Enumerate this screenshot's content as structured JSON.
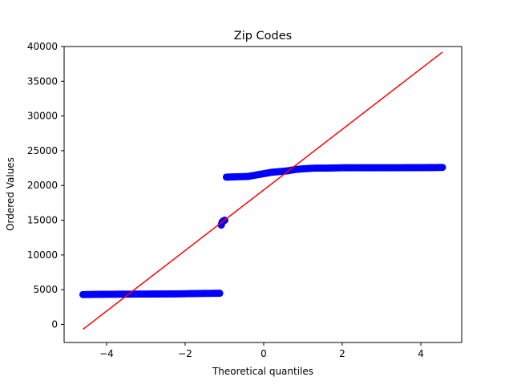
{
  "chart_data": {
    "type": "scatter",
    "title": "Zip Codes",
    "xlabel": "Theoretical quantiles",
    "ylabel": "Ordered Values",
    "xlim": [
      -5.08,
      5.04
    ],
    "ylim": [
      -2600,
      40000
    ],
    "xticks": [
      -4,
      -2,
      0,
      2,
      4
    ],
    "yticks": [
      0,
      5000,
      10000,
      15000,
      20000,
      25000,
      30000,
      35000,
      40000
    ],
    "xtick_labels": [
      "−4",
      "−2",
      "0",
      "2",
      "4"
    ],
    "ytick_labels": [
      "0",
      "5000",
      "10000",
      "15000",
      "20000",
      "25000",
      "30000",
      "35000",
      "40000"
    ],
    "grid": false,
    "colors": {
      "points": "#0000ff",
      "fit_line": "#ff0000",
      "axes": "#000000"
    },
    "series": [
      {
        "kind": "points",
        "points": [
          [
            -4.6,
            4300
          ],
          [
            -4.3,
            4320
          ],
          [
            -4.0,
            4340
          ],
          [
            -3.7,
            4350
          ],
          [
            -3.4,
            4360
          ],
          [
            -3.1,
            4370
          ],
          [
            -2.8,
            4380
          ],
          [
            -2.5,
            4390
          ],
          [
            -2.2,
            4400
          ],
          [
            -2.0,
            4420
          ],
          [
            -1.8,
            4440
          ],
          [
            -1.6,
            4460
          ],
          [
            -1.4,
            4470
          ],
          [
            -1.25,
            4480
          ],
          [
            -1.12,
            4480
          ],
          [
            -1.08,
            14300
          ],
          [
            -1.06,
            14700
          ],
          [
            -1.03,
            14900
          ],
          [
            -0.99,
            15000
          ],
          [
            -0.95,
            21200
          ],
          [
            -0.7,
            21250
          ],
          [
            -0.4,
            21300
          ],
          [
            -0.2,
            21500
          ],
          [
            0.0,
            21700
          ],
          [
            0.2,
            21900
          ],
          [
            0.4,
            22000
          ],
          [
            0.6,
            22100
          ],
          [
            0.8,
            22300
          ],
          [
            1.0,
            22400
          ],
          [
            1.3,
            22500
          ],
          [
            1.6,
            22500
          ],
          [
            2.0,
            22550
          ],
          [
            2.5,
            22550
          ],
          [
            3.0,
            22550
          ],
          [
            3.5,
            22560
          ],
          [
            4.0,
            22570
          ],
          [
            4.3,
            22580
          ],
          [
            4.55,
            22600
          ]
        ]
      },
      {
        "kind": "fit_line",
        "points": [
          [
            -4.6,
            -700
          ],
          [
            4.55,
            39200
          ]
        ]
      }
    ]
  }
}
